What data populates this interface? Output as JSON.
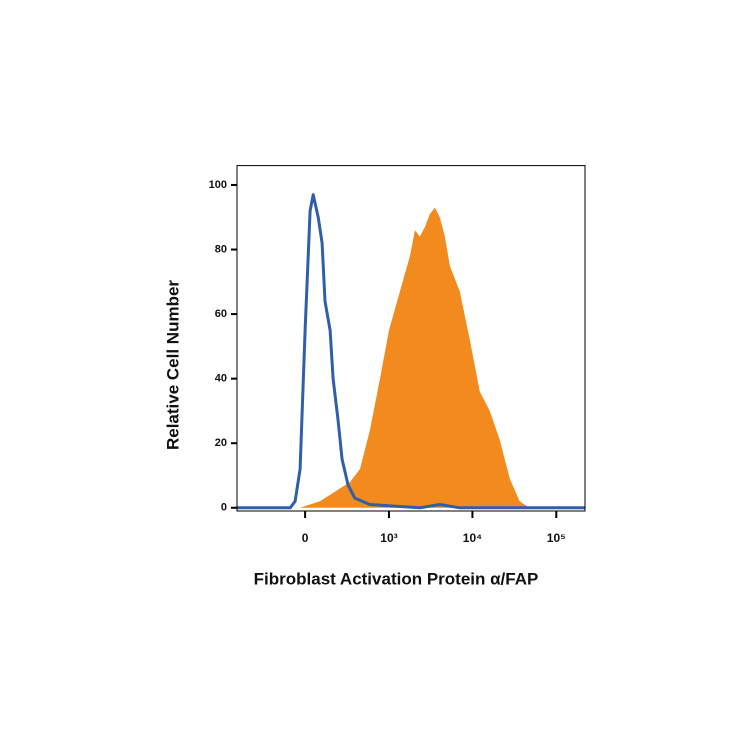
{
  "chart_data": {
    "type": "histogram-overlay",
    "x_label": "Fibroblast Activation Protein α/FAP",
    "y_label": "Relative Cell Number",
    "xscale": "biexponential",
    "xlim": [
      -640,
      220000
    ],
    "xticks": [
      0,
      {
        "value": 1000,
        "label": "10³"
      },
      {
        "value": 10000,
        "label": "10⁴"
      },
      {
        "value": 100000,
        "label": "10⁵"
      }
    ],
    "ylim": [
      -1,
      106
    ],
    "yticks": [
      0,
      20,
      40,
      60,
      80,
      100
    ],
    "series": [
      {
        "style": "filled",
        "color": "#f28a1e",
        "x": [
          -28,
          85,
          225,
          319,
          434,
          582,
          776,
          1000,
          1357,
          1792,
          2055,
          2359,
          2705,
          3105,
          3560,
          4081,
          4690,
          5373,
          7070,
          9310,
          12240,
          16080,
          21170,
          27860,
          36560,
          48080
        ],
        "values": [
          0,
          2,
          6,
          8,
          12,
          24,
          40,
          55,
          67,
          78,
          86,
          84,
          87,
          91,
          93,
          90,
          84,
          75,
          67,
          52,
          36,
          30,
          21,
          9,
          2,
          0
        ]
      },
      {
        "style": "line",
        "color": "#2e5fa8",
        "x": [
          -640,
          -85,
          -56,
          -28,
          0,
          28,
          45,
          74,
          98,
          116,
          150,
          171,
          209,
          242,
          298,
          370,
          582,
          2359,
          4081,
          7070,
          217500
        ],
        "values": [
          0,
          0,
          2,
          12,
          55,
          92,
          97,
          90,
          82,
          64,
          55,
          40,
          27,
          15,
          7,
          3,
          1,
          0,
          1,
          0,
          0
        ]
      }
    ]
  }
}
